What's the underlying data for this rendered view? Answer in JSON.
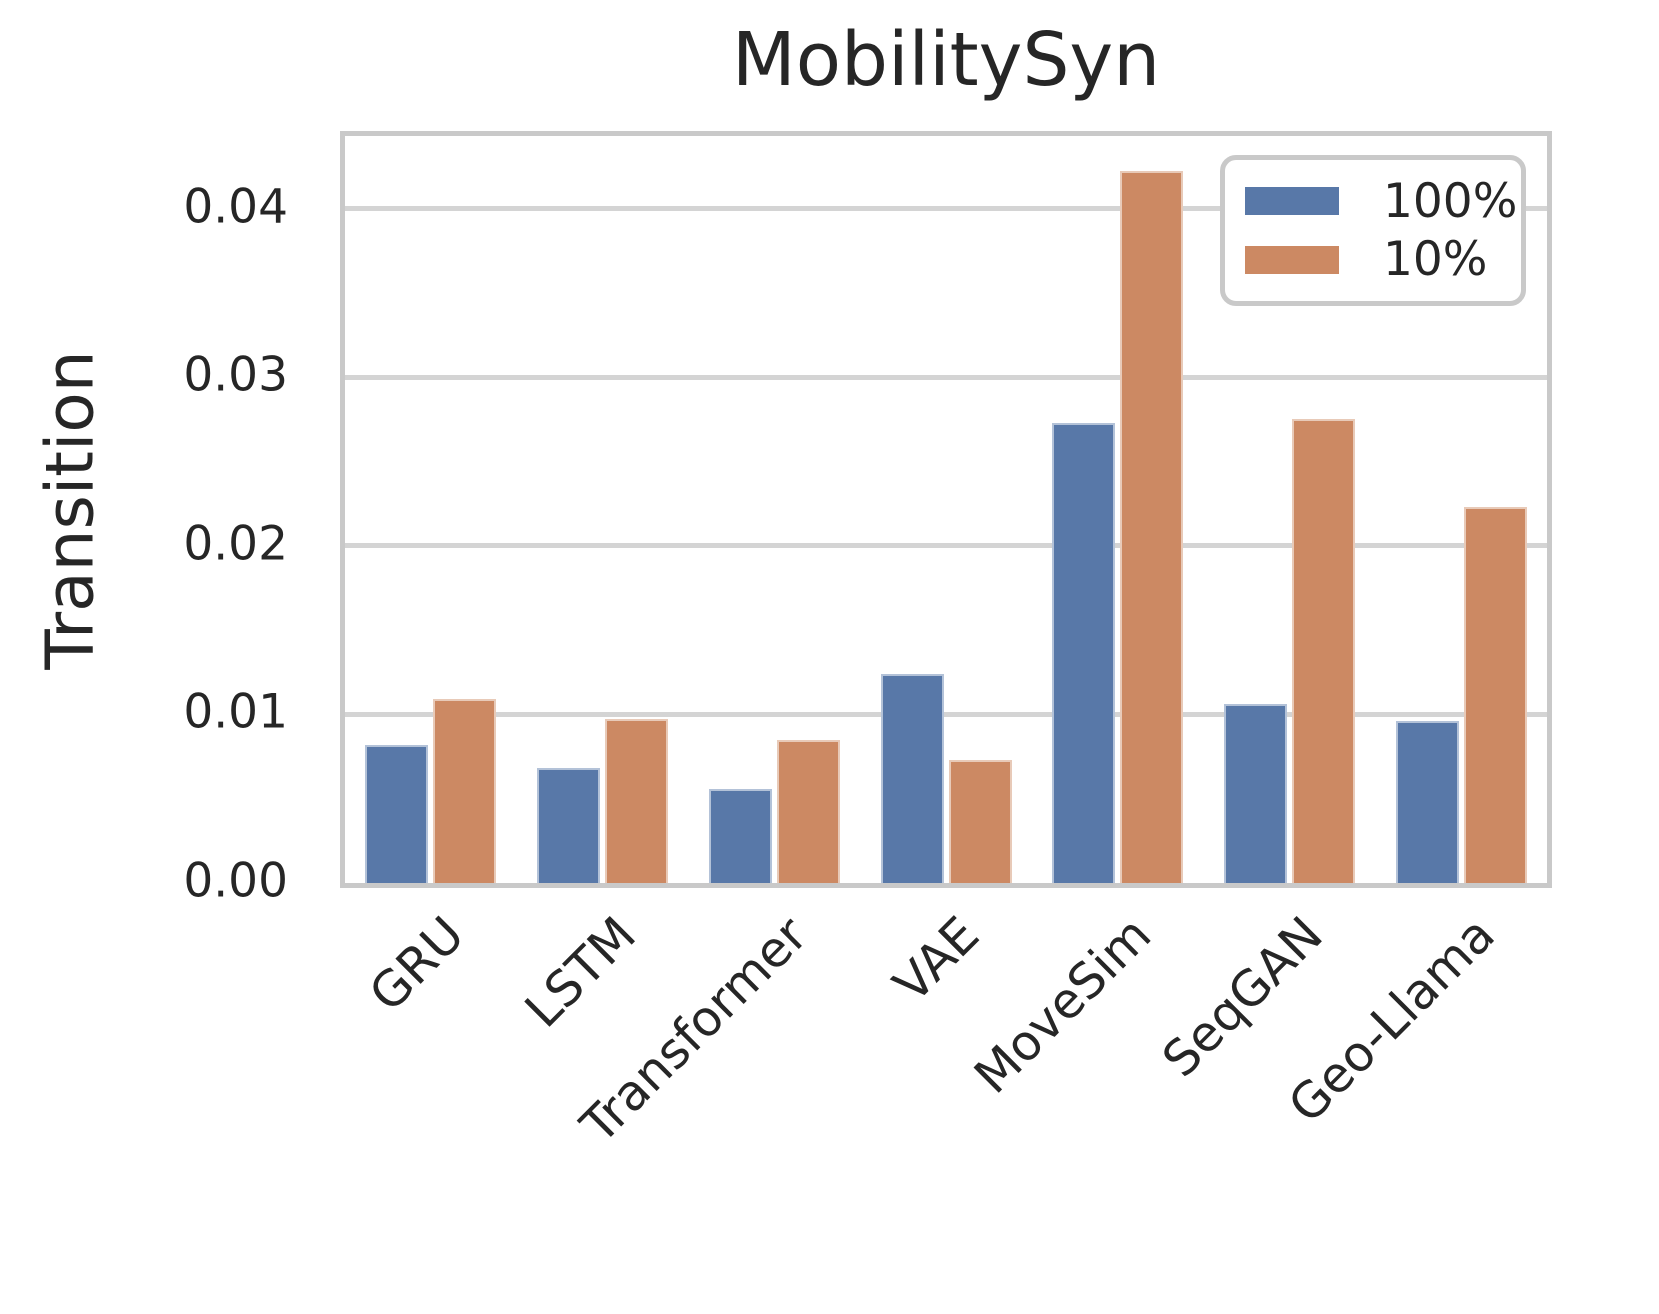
{
  "title": "MobilitySyn",
  "chart_data": {
    "type": "bar",
    "title": "MobilitySyn",
    "xlabel": "",
    "ylabel": "Transition",
    "categories": [
      "GRU",
      "LSTM",
      "Transformer",
      "VAE",
      "MoveSim",
      "SeqGAN",
      "Geo-Llama"
    ],
    "series": [
      {
        "name": "100%",
        "color": "#5878A8",
        "values": [
          0.0082,
          0.0068,
          0.0056,
          0.0124,
          0.0273,
          0.0106,
          0.0096
        ]
      },
      {
        "name": "10%",
        "color": "#CC8963",
        "values": [
          0.0109,
          0.0097,
          0.0085,
          0.0073,
          0.0422,
          0.0275,
          0.0223
        ]
      }
    ],
    "ylim": [
      0,
      0.0443
    ],
    "yticks": [
      0,
      0.01,
      0.02,
      0.03,
      0.04
    ],
    "ytick_labels": [
      "0.00",
      "0.01",
      "0.02",
      "0.03",
      "0.04"
    ],
    "grid": true,
    "grid_axis": "y",
    "legend_position": "upper right",
    "bar_edge": "white"
  },
  "colors": {
    "text": "#262626",
    "grid": "#d4d4d4",
    "spine": "#c9c9c9",
    "background": "#ffffff",
    "blue_series": "#5878A8",
    "orange_series": "#CC8963"
  }
}
